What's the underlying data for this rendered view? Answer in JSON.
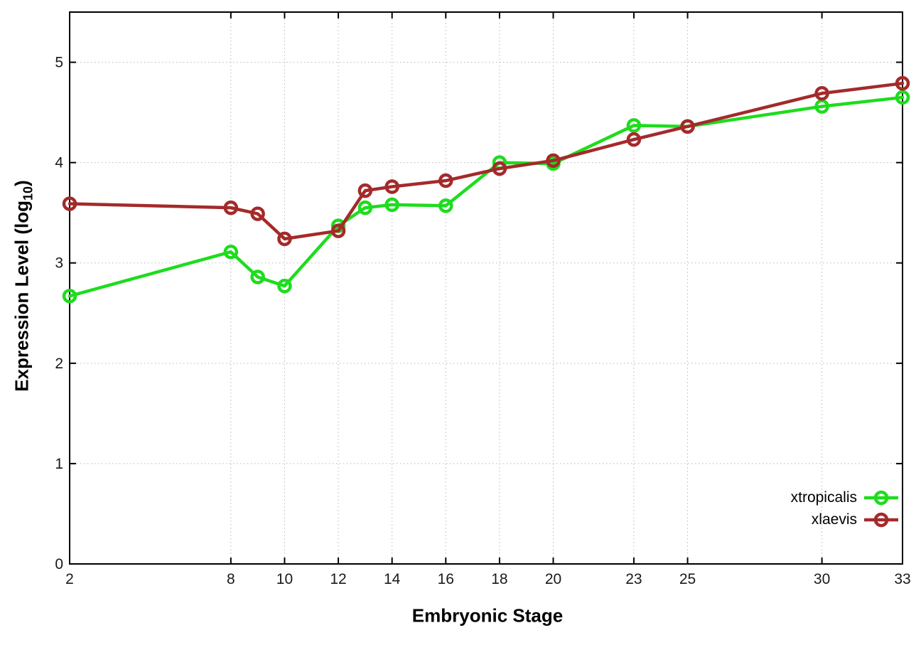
{
  "figure": {
    "xlabel": "Embryonic Stage",
    "ylabel_prefix": "Expression Level (log",
    "ylabel_sub": "10",
    "ylabel_suffix": ")",
    "background": "#ffffff",
    "border_color": "#000000",
    "grid_color": "#b8b8b8"
  },
  "legend": {
    "position": "inside-bottom-right",
    "entries": [
      {
        "label": "xtropicalis",
        "color": "#1edc1e",
        "marker": "open-circle-icon"
      },
      {
        "label": "xlaevis",
        "color": "#a42a2a",
        "marker": "open-circle-icon"
      }
    ]
  },
  "chart_data": {
    "type": "line",
    "title": "",
    "xlabel": "Embryonic Stage",
    "ylabel": "Expression Level (log10)",
    "x": [
      2,
      8,
      9,
      10,
      12,
      13,
      14,
      16,
      18,
      20,
      23,
      25,
      30,
      33
    ],
    "series": [
      {
        "name": "xtropicalis",
        "color": "#1edc1e",
        "marker": "open-circle",
        "values": [
          2.67,
          3.11,
          2.86,
          2.77,
          3.37,
          3.55,
          3.58,
          3.57,
          4.0,
          3.99,
          4.37,
          4.36,
          4.56,
          4.65
        ]
      },
      {
        "name": "xlaevis",
        "color": "#a42a2a",
        "marker": "open-circle",
        "values": [
          3.59,
          3.55,
          3.49,
          3.24,
          3.32,
          3.72,
          3.76,
          3.82,
          3.94,
          4.02,
          4.23,
          4.36,
          4.69,
          4.79
        ]
      }
    ],
    "xlim": [
      2,
      33
    ],
    "ylim": [
      0,
      5.5
    ],
    "xticks": [
      2,
      8,
      10,
      12,
      14,
      16,
      18,
      20,
      23,
      25,
      30,
      33
    ],
    "yticks": [
      0,
      1,
      2,
      3,
      4,
      5
    ],
    "grid": true,
    "grid_style": "dotted",
    "legend_position": "bottom-right-inside"
  }
}
